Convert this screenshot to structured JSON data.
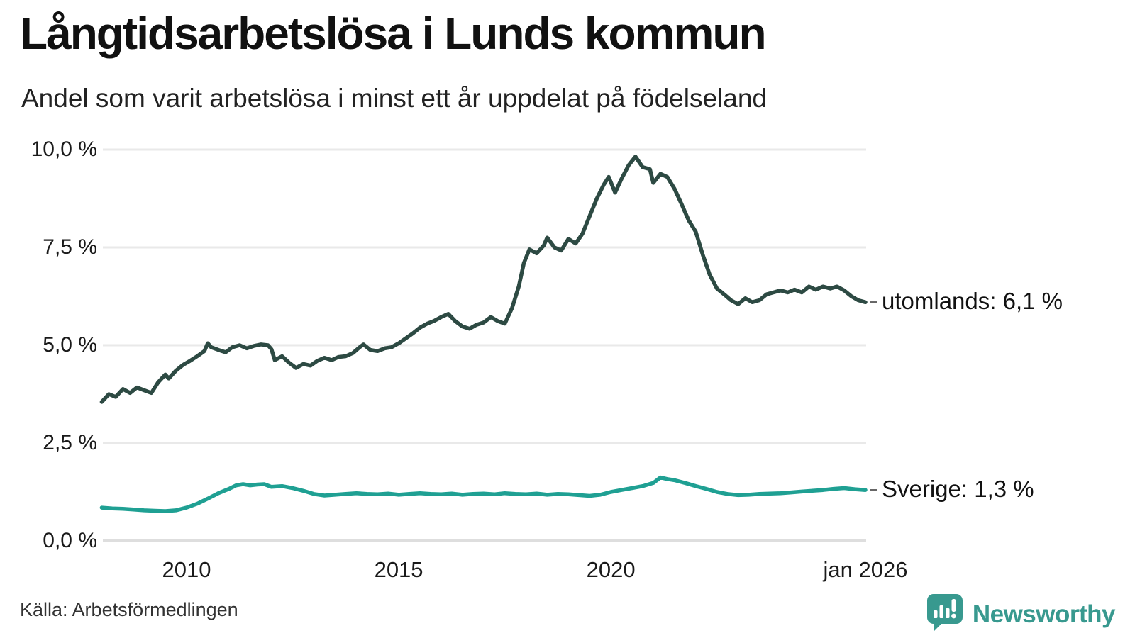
{
  "chart_data": {
    "type": "line",
    "title": "Långtidsarbetslösa i Lunds kommun",
    "subtitle": "Andel som varit arbetslösa i minst ett år uppdelat på födelseland",
    "grid": "horizontal",
    "legend_position": "end-of-line-labels",
    "x_range": [
      2008,
      2026.1
    ],
    "x_axis": {
      "ticks": [
        {
          "label": "2010",
          "x": 2010
        },
        {
          "label": "2015",
          "x": 2015
        },
        {
          "label": "2020",
          "x": 2020
        },
        {
          "label": "jan 2026",
          "x": 2026
        }
      ]
    },
    "y_axis": {
      "unit": "%",
      "range": [
        0,
        10
      ],
      "ticks": [
        {
          "label": "0,0 %",
          "value": 0
        },
        {
          "label": "2,5 %",
          "value": 2.5
        },
        {
          "label": "5,0 %",
          "value": 5
        },
        {
          "label": "7,5 %",
          "value": 7.5
        },
        {
          "label": "10,0 %",
          "value": 10
        }
      ]
    },
    "series": [
      {
        "name": "utomlands",
        "color": "#2d4a43",
        "end_label": "utomlands: 6,1 %",
        "end_value": 6.1,
        "points": [
          [
            2008.0,
            3.55
          ],
          [
            2008.17,
            3.75
          ],
          [
            2008.33,
            3.68
          ],
          [
            2008.5,
            3.88
          ],
          [
            2008.67,
            3.78
          ],
          [
            2008.83,
            3.92
          ],
          [
            2009.0,
            3.85
          ],
          [
            2009.17,
            3.78
          ],
          [
            2009.33,
            4.05
          ],
          [
            2009.5,
            4.25
          ],
          [
            2009.58,
            4.15
          ],
          [
            2009.75,
            4.35
          ],
          [
            2009.92,
            4.5
          ],
          [
            2010.08,
            4.6
          ],
          [
            2010.25,
            4.72
          ],
          [
            2010.42,
            4.85
          ],
          [
            2010.5,
            5.05
          ],
          [
            2010.58,
            4.95
          ],
          [
            2010.75,
            4.88
          ],
          [
            2010.92,
            4.82
          ],
          [
            2011.08,
            4.95
          ],
          [
            2011.25,
            5.0
          ],
          [
            2011.42,
            4.92
          ],
          [
            2011.58,
            4.98
          ],
          [
            2011.75,
            5.02
          ],
          [
            2011.92,
            5.0
          ],
          [
            2012.0,
            4.9
          ],
          [
            2012.08,
            4.62
          ],
          [
            2012.25,
            4.72
          ],
          [
            2012.42,
            4.55
          ],
          [
            2012.58,
            4.42
          ],
          [
            2012.75,
            4.52
          ],
          [
            2012.92,
            4.48
          ],
          [
            2013.08,
            4.6
          ],
          [
            2013.25,
            4.68
          ],
          [
            2013.42,
            4.62
          ],
          [
            2013.58,
            4.7
          ],
          [
            2013.75,
            4.72
          ],
          [
            2013.92,
            4.8
          ],
          [
            2014.08,
            4.95
          ],
          [
            2014.17,
            5.02
          ],
          [
            2014.33,
            4.88
          ],
          [
            2014.5,
            4.85
          ],
          [
            2014.67,
            4.92
          ],
          [
            2014.83,
            4.95
          ],
          [
            2015.0,
            5.05
          ],
          [
            2015.17,
            5.18
          ],
          [
            2015.33,
            5.3
          ],
          [
            2015.5,
            5.45
          ],
          [
            2015.67,
            5.55
          ],
          [
            2015.83,
            5.62
          ],
          [
            2016.0,
            5.72
          ],
          [
            2016.17,
            5.8
          ],
          [
            2016.33,
            5.62
          ],
          [
            2016.5,
            5.48
          ],
          [
            2016.67,
            5.42
          ],
          [
            2016.83,
            5.52
          ],
          [
            2017.0,
            5.58
          ],
          [
            2017.17,
            5.72
          ],
          [
            2017.33,
            5.62
          ],
          [
            2017.5,
            5.55
          ],
          [
            2017.67,
            5.95
          ],
          [
            2017.83,
            6.5
          ],
          [
            2017.95,
            7.1
          ],
          [
            2018.08,
            7.45
          ],
          [
            2018.25,
            7.35
          ],
          [
            2018.42,
            7.55
          ],
          [
            2018.5,
            7.75
          ],
          [
            2018.67,
            7.5
          ],
          [
            2018.83,
            7.42
          ],
          [
            2019.0,
            7.72
          ],
          [
            2019.17,
            7.6
          ],
          [
            2019.33,
            7.85
          ],
          [
            2019.5,
            8.3
          ],
          [
            2019.67,
            8.75
          ],
          [
            2019.83,
            9.1
          ],
          [
            2019.95,
            9.3
          ],
          [
            2020.1,
            8.9
          ],
          [
            2020.25,
            9.25
          ],
          [
            2020.42,
            9.6
          ],
          [
            2020.58,
            9.82
          ],
          [
            2020.75,
            9.55
          ],
          [
            2020.92,
            9.5
          ],
          [
            2021.0,
            9.15
          ],
          [
            2021.17,
            9.38
          ],
          [
            2021.33,
            9.3
          ],
          [
            2021.5,
            9.0
          ],
          [
            2021.67,
            8.6
          ],
          [
            2021.83,
            8.2
          ],
          [
            2022.0,
            7.9
          ],
          [
            2022.17,
            7.3
          ],
          [
            2022.33,
            6.8
          ],
          [
            2022.5,
            6.45
          ],
          [
            2022.67,
            6.3
          ],
          [
            2022.83,
            6.15
          ],
          [
            2023.0,
            6.05
          ],
          [
            2023.17,
            6.2
          ],
          [
            2023.33,
            6.1
          ],
          [
            2023.5,
            6.15
          ],
          [
            2023.67,
            6.3
          ],
          [
            2023.83,
            6.35
          ],
          [
            2024.0,
            6.4
          ],
          [
            2024.17,
            6.35
          ],
          [
            2024.33,
            6.42
          ],
          [
            2024.5,
            6.35
          ],
          [
            2024.67,
            6.5
          ],
          [
            2024.83,
            6.42
          ],
          [
            2025.0,
            6.5
          ],
          [
            2025.17,
            6.45
          ],
          [
            2025.33,
            6.5
          ],
          [
            2025.5,
            6.4
          ],
          [
            2025.67,
            6.25
          ],
          [
            2025.83,
            6.15
          ],
          [
            2026.0,
            6.1
          ]
        ]
      },
      {
        "name": "Sverige",
        "color": "#1fa093",
        "end_label": "Sverige: 1,3 %",
        "end_value": 1.3,
        "points": [
          [
            2008.0,
            0.85
          ],
          [
            2008.25,
            0.83
          ],
          [
            2008.5,
            0.82
          ],
          [
            2008.75,
            0.8
          ],
          [
            2009.0,
            0.78
          ],
          [
            2009.25,
            0.77
          ],
          [
            2009.5,
            0.76
          ],
          [
            2009.75,
            0.78
          ],
          [
            2010.0,
            0.85
          ],
          [
            2010.25,
            0.95
          ],
          [
            2010.5,
            1.08
          ],
          [
            2010.75,
            1.22
          ],
          [
            2011.0,
            1.33
          ],
          [
            2011.17,
            1.42
          ],
          [
            2011.33,
            1.45
          ],
          [
            2011.5,
            1.42
          ],
          [
            2011.67,
            1.44
          ],
          [
            2011.83,
            1.45
          ],
          [
            2012.0,
            1.38
          ],
          [
            2012.25,
            1.4
          ],
          [
            2012.5,
            1.35
          ],
          [
            2012.75,
            1.28
          ],
          [
            2013.0,
            1.2
          ],
          [
            2013.25,
            1.16
          ],
          [
            2013.5,
            1.18
          ],
          [
            2013.75,
            1.2
          ],
          [
            2014.0,
            1.22
          ],
          [
            2014.25,
            1.2
          ],
          [
            2014.5,
            1.19
          ],
          [
            2014.75,
            1.21
          ],
          [
            2015.0,
            1.18
          ],
          [
            2015.25,
            1.2
          ],
          [
            2015.5,
            1.22
          ],
          [
            2015.75,
            1.2
          ],
          [
            2016.0,
            1.19
          ],
          [
            2016.25,
            1.21
          ],
          [
            2016.5,
            1.18
          ],
          [
            2016.75,
            1.2
          ],
          [
            2017.0,
            1.21
          ],
          [
            2017.25,
            1.19
          ],
          [
            2017.5,
            1.22
          ],
          [
            2017.75,
            1.2
          ],
          [
            2018.0,
            1.19
          ],
          [
            2018.25,
            1.21
          ],
          [
            2018.5,
            1.18
          ],
          [
            2018.75,
            1.2
          ],
          [
            2019.0,
            1.19
          ],
          [
            2019.25,
            1.17
          ],
          [
            2019.5,
            1.15
          ],
          [
            2019.75,
            1.18
          ],
          [
            2020.0,
            1.25
          ],
          [
            2020.25,
            1.3
          ],
          [
            2020.5,
            1.35
          ],
          [
            2020.75,
            1.4
          ],
          [
            2021.0,
            1.48
          ],
          [
            2021.17,
            1.62
          ],
          [
            2021.33,
            1.58
          ],
          [
            2021.5,
            1.55
          ],
          [
            2021.75,
            1.48
          ],
          [
            2022.0,
            1.4
          ],
          [
            2022.25,
            1.33
          ],
          [
            2022.5,
            1.25
          ],
          [
            2022.75,
            1.2
          ],
          [
            2023.0,
            1.17
          ],
          [
            2023.25,
            1.18
          ],
          [
            2023.5,
            1.2
          ],
          [
            2023.75,
            1.21
          ],
          [
            2024.0,
            1.22
          ],
          [
            2024.25,
            1.24
          ],
          [
            2024.5,
            1.26
          ],
          [
            2024.75,
            1.28
          ],
          [
            2025.0,
            1.3
          ],
          [
            2025.25,
            1.33
          ],
          [
            2025.5,
            1.35
          ],
          [
            2025.75,
            1.32
          ],
          [
            2026.0,
            1.3
          ]
        ]
      }
    ],
    "colors": {
      "grid": "#e9e9e9",
      "axis": "#dedede",
      "annotation_dash": "#666666",
      "text": "#111111"
    }
  },
  "footer": {
    "source": "Källa: Arbetsförmedlingen",
    "brand": "Newsworthy",
    "brand_color": "#38998f",
    "logo_icon": "bar-chart-speech-bubble"
  }
}
